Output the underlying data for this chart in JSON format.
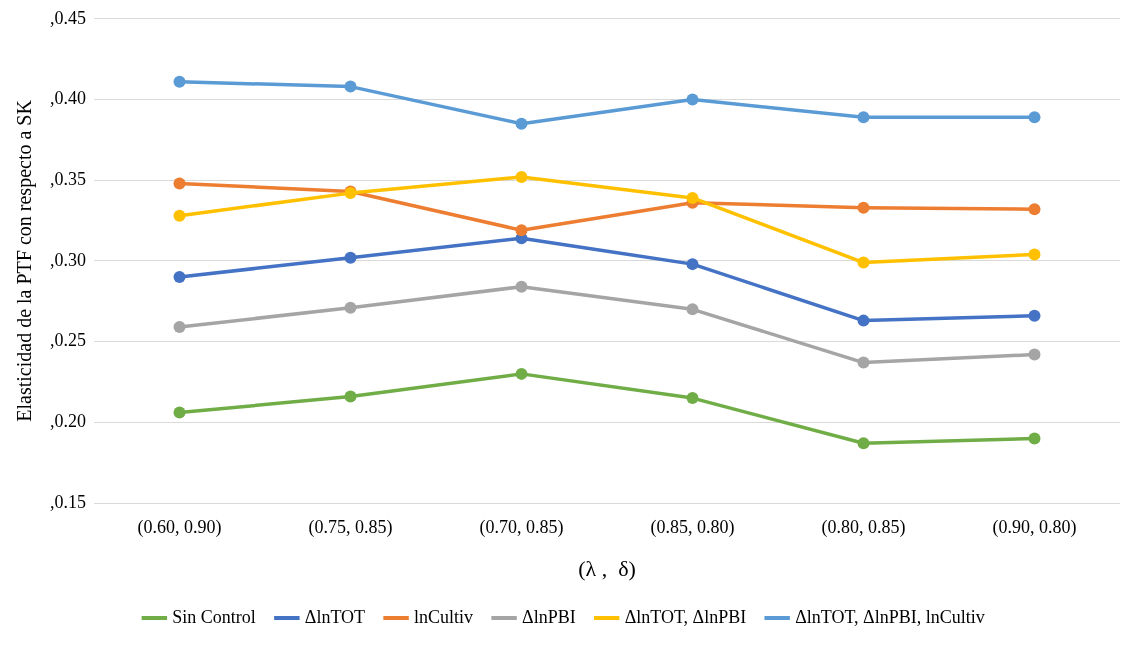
{
  "chart_data": {
    "type": "line",
    "ylabel": "Elasticidad de la PTF con respecto a SK",
    "xlabel": "(λ ,  δ)",
    "categories": [
      "(0.60, 0.90)",
      "(0.75, 0.85)",
      "(0.70, 0.85)",
      "(0.85, 0.80)",
      "(0.80, 0.85)",
      "(0.90, 0.80)"
    ],
    "ylim": [
      0.15,
      0.45
    ],
    "yticks": [
      {
        "value": 0.15,
        "label": ",0.15"
      },
      {
        "value": 0.2,
        "label": ",0.20"
      },
      {
        "value": 0.25,
        "label": ",0.25"
      },
      {
        "value": 0.3,
        "label": ",0.30"
      },
      {
        "value": 0.35,
        "label": ",0.35"
      },
      {
        "value": 0.4,
        "label": ",0.40"
      },
      {
        "value": 0.45,
        "label": ",0.45"
      }
    ],
    "grid": "y",
    "legend": "bottom",
    "marker": "circle",
    "line_style": "solid",
    "series": [
      {
        "name": "Sin Control",
        "color": "#70ad47",
        "values": [
          0.206,
          0.216,
          0.23,
          0.215,
          0.187,
          0.19
        ]
      },
      {
        "name": "ΔlnTOT",
        "color": "#4472c4",
        "values": [
          0.29,
          0.302,
          0.314,
          0.298,
          0.263,
          0.266
        ]
      },
      {
        "name": "lnCultiv",
        "color": "#ed7d31",
        "values": [
          0.348,
          0.343,
          0.319,
          0.336,
          0.333,
          0.332
        ]
      },
      {
        "name": "ΔlnPBI",
        "color": "#a5a5a5",
        "values": [
          0.259,
          0.271,
          0.284,
          0.27,
          0.237,
          0.242
        ]
      },
      {
        "name": "ΔlnTOT, ΔlnPBI",
        "color": "#ffc000",
        "values": [
          0.328,
          0.342,
          0.352,
          0.339,
          0.299,
          0.304
        ]
      },
      {
        "name": "ΔlnTOT, ΔlnPBI, lnCultiv",
        "color": "#5b9bd5",
        "values": [
          0.411,
          0.408,
          0.385,
          0.4,
          0.389,
          0.389
        ]
      }
    ]
  }
}
